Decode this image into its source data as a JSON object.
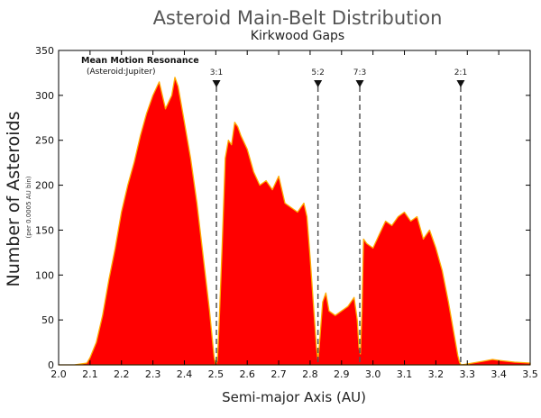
{
  "chart_data": {
    "type": "area",
    "title": "Asteroid Main-Belt Distribution",
    "subtitle": "Kirkwood Gaps",
    "xlabel": "Semi-major Axis (AU)",
    "ylabel": "Number of Asteroids",
    "ylabel_sub": "(per 0.0005 AU bin)",
    "xlim": [
      2.0,
      3.5
    ],
    "ylim": [
      0,
      350
    ],
    "x_ticks": [
      "2.0",
      "2.1",
      "2.2",
      "2.3",
      "2.4",
      "2.5",
      "2.6",
      "2.7",
      "2.8",
      "2.9",
      "3.0",
      "3.1",
      "3.2",
      "3.3",
      "3.4",
      "3.5"
    ],
    "y_ticks": [
      "0",
      "50",
      "100",
      "150",
      "200",
      "250",
      "300",
      "350"
    ],
    "grid": false,
    "colors": {
      "fill": "#ff0000",
      "edge": "#ffaa00",
      "resonance": "#555555"
    },
    "annotation": {
      "title": "Mean Motion Resonance",
      "subtitle": "(Asteroid:Jupiter)"
    },
    "resonances": [
      {
        "label": "3:1",
        "x": 2.502
      },
      {
        "label": "5:2",
        "x": 2.825
      },
      {
        "label": "7:3",
        "x": 2.958
      },
      {
        "label": "2:1",
        "x": 3.279
      }
    ],
    "series": [
      {
        "x": [
          2.0,
          2.05,
          2.09,
          2.1,
          2.12,
          2.14,
          2.16,
          2.18,
          2.2,
          2.22,
          2.24,
          2.26,
          2.28,
          2.3,
          2.32,
          2.34,
          2.36,
          2.37,
          2.38,
          2.39,
          2.4,
          2.42,
          2.44,
          2.46,
          2.48,
          2.49,
          2.495,
          2.5,
          2.505,
          2.51,
          2.52,
          2.53,
          2.54,
          2.55,
          2.56,
          2.57,
          2.58,
          2.6,
          2.62,
          2.64,
          2.66,
          2.68,
          2.7,
          2.72,
          2.74,
          2.76,
          2.78,
          2.79,
          2.8,
          2.81,
          2.82,
          2.825,
          2.83,
          2.84,
          2.85,
          2.86,
          2.88,
          2.9,
          2.92,
          2.94,
          2.95,
          2.955,
          2.96,
          2.965,
          2.97,
          2.98,
          3.0,
          3.02,
          3.04,
          3.06,
          3.08,
          3.1,
          3.12,
          3.14,
          3.16,
          3.18,
          3.2,
          3.22,
          3.24,
          3.26,
          3.27,
          3.275,
          3.28,
          3.3,
          3.35,
          3.38,
          3.4,
          3.45,
          3.5
        ],
        "y": [
          0,
          0,
          2,
          8,
          25,
          55,
          95,
          130,
          170,
          200,
          225,
          255,
          280,
          300,
          315,
          285,
          300,
          320,
          310,
          290,
          270,
          230,
          180,
          120,
          60,
          25,
          8,
          0,
          5,
          40,
          130,
          230,
          250,
          245,
          270,
          265,
          255,
          240,
          215,
          200,
          205,
          195,
          210,
          180,
          175,
          170,
          180,
          165,
          120,
          70,
          20,
          5,
          25,
          70,
          80,
          60,
          55,
          60,
          65,
          75,
          50,
          20,
          12,
          60,
          140,
          135,
          130,
          145,
          160,
          155,
          165,
          170,
          160,
          165,
          140,
          150,
          130,
          105,
          70,
          30,
          10,
          3,
          0,
          1,
          4,
          6,
          5,
          3,
          2
        ]
      }
    ]
  }
}
